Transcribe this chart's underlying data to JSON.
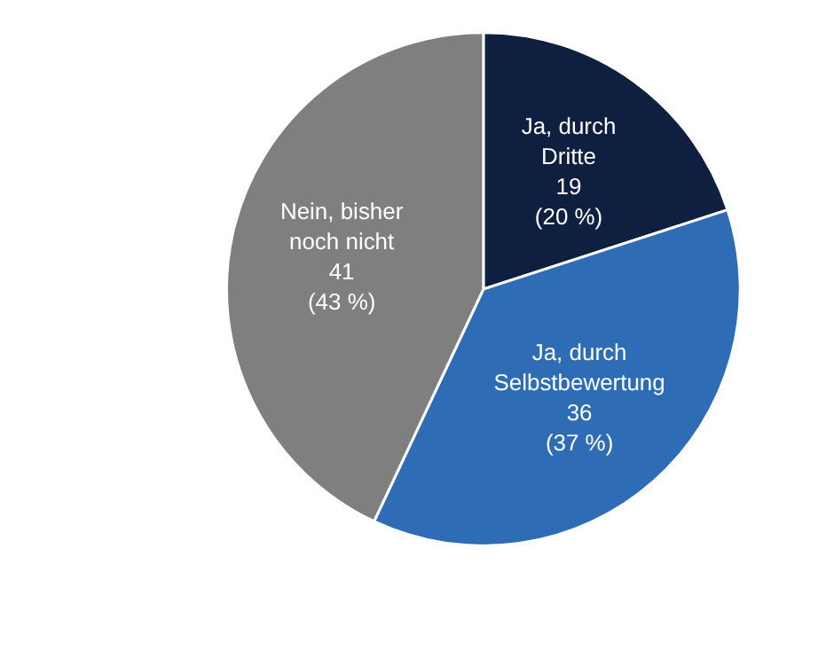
{
  "chart_data": {
    "type": "pie",
    "categories": [
      "Ja, durch\nDritte",
      "Ja, durch\nSelbstbewertung",
      "Nein, bisher\nnoch nicht"
    ],
    "values": [
      20,
      37,
      43
    ],
    "colors": [
      "#0e1f3f",
      "#2e6db5",
      "#7f7f7f"
    ],
    "value_labels": [
      "19\n(20 %)",
      "36\n(37 %)",
      "41\n(43 %)"
    ],
    "legend": false
  }
}
